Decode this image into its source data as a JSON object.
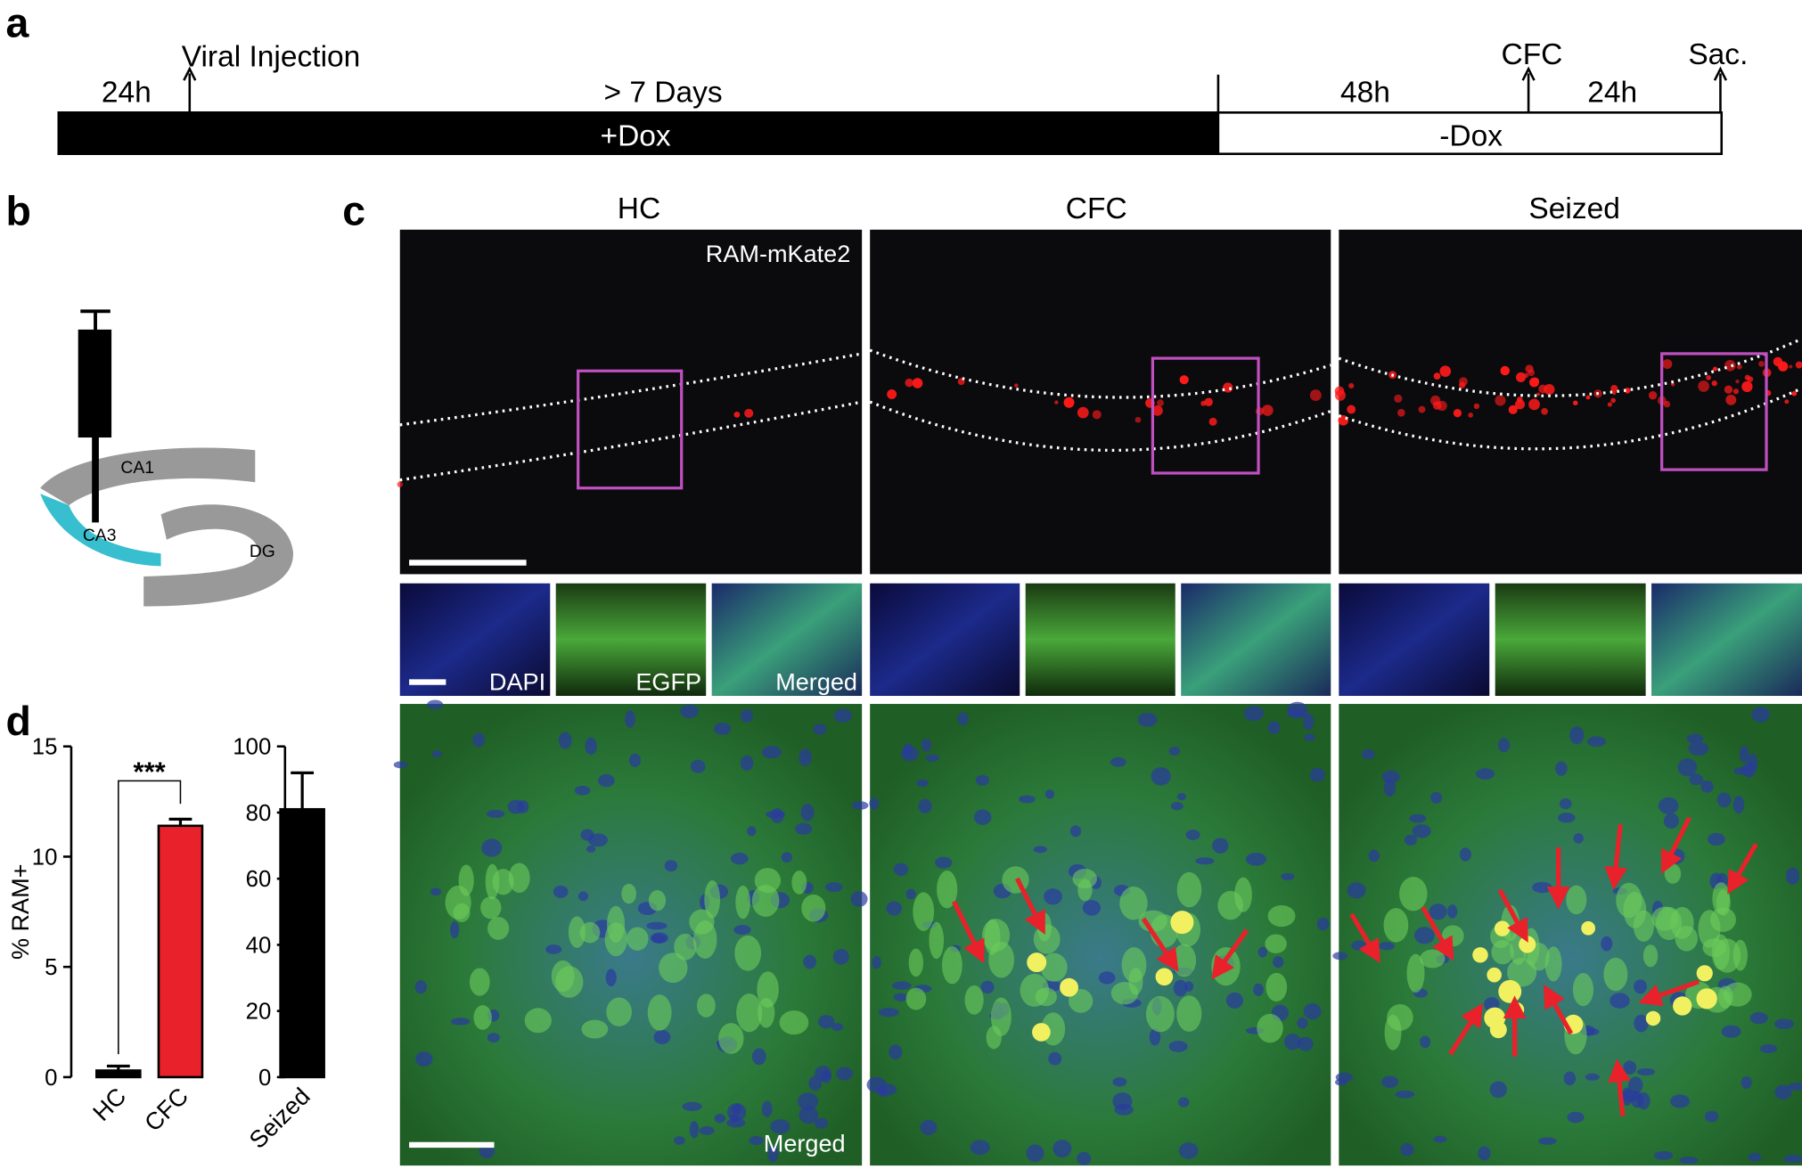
{
  "panel_labels": [
    "a",
    "b",
    "c",
    "d"
  ],
  "timeline": {
    "pre_injection": "24h",
    "injection": "Viral Injection",
    "dox_period": "> 7 Days",
    "dox_on": "+Dox",
    "post_dox": "48h",
    "cfc": "CFC",
    "post_cfc": "24h",
    "sacrifice": "Sac.",
    "dox_off": "-Dox"
  },
  "diagram": {
    "regions": [
      "CA1",
      "CA3",
      "DG"
    ]
  },
  "micrographs": {
    "columns": [
      "HC",
      "CFC",
      "Seized"
    ],
    "top_label": "RAM-mKate2",
    "channels": [
      "DAPI",
      "EGFP",
      "Merged"
    ],
    "bottom_label": "Merged"
  },
  "chart_data": [
    {
      "type": "bar",
      "ylabel": "% RAM+",
      "categories": [
        "HC",
        "CFC"
      ],
      "values": [
        0.3,
        11.4
      ],
      "errors": [
        0.2,
        0.3
      ],
      "colors": [
        "#000000",
        "#e8212a"
      ],
      "ylim": [
        0,
        15
      ],
      "yticks": [
        0,
        5,
        10,
        15
      ],
      "annotation": "***"
    },
    {
      "type": "bar",
      "categories": [
        "Seized"
      ],
      "values": [
        81
      ],
      "errors": [
        11
      ],
      "colors": [
        "#000000"
      ],
      "ylim": [
        0,
        100
      ],
      "yticks": [
        0,
        20,
        40,
        60,
        80,
        100
      ]
    }
  ]
}
